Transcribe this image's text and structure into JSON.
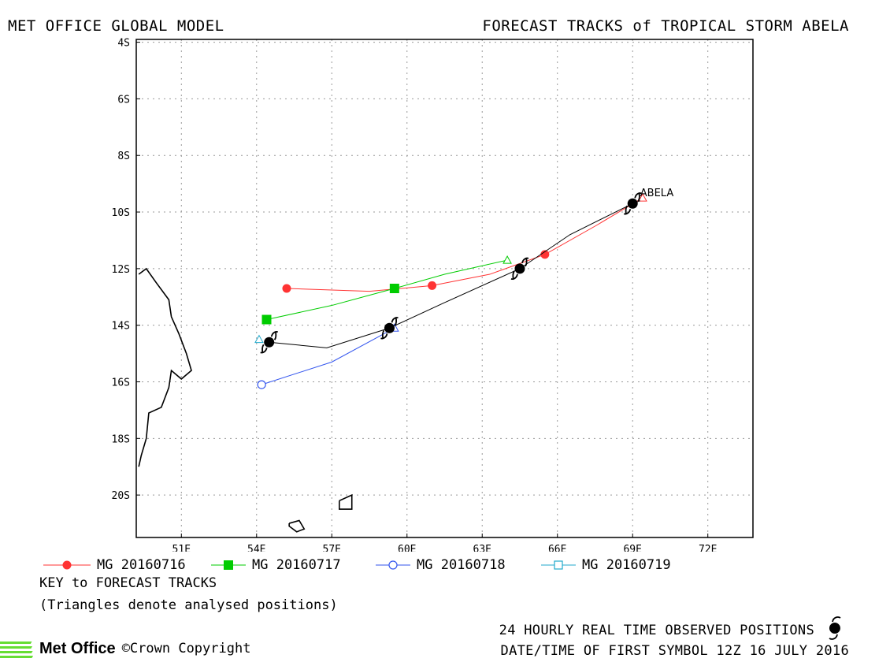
{
  "header": {
    "left": "MET OFFICE GLOBAL MODEL",
    "right": "FORECAST TRACKS of TROPICAL STORM ABELA"
  },
  "storm_label": "ABELA",
  "key": {
    "title": "KEY to FORECAST TRACKS",
    "note": "(Triangles denote analysed positions)"
  },
  "footer": {
    "observed": "24 HOURLY REAL TIME OBSERVED POSITIONS",
    "first_symbol": "DATE/TIME OF FIRST SYMBOL 12Z 16 JULY 2016",
    "logo": "Met Office",
    "copyright": "©Crown Copyright"
  },
  "colors": {
    "mg20160716": "#ff3333",
    "mg20160717": "#00cc00",
    "mg20160718": "#3355ee",
    "mg20160719": "#22aacc",
    "observed": "#000000",
    "grid": "#999999",
    "logo": "#66dd33"
  },
  "chart_data": {
    "type": "line",
    "title": "FORECAST TRACKS of TROPICAL STORM ABELA",
    "x_ticks": [
      "51E",
      "54E",
      "57E",
      "60E",
      "63E",
      "66E",
      "69E",
      "72E"
    ],
    "y_ticks": [
      "4S",
      "6S",
      "8S",
      "10S",
      "12S",
      "14S",
      "16S",
      "18S",
      "20S"
    ],
    "xlim": [
      49.2,
      73.8
    ],
    "ylim": [
      -21.5,
      -3.9
    ],
    "grid": true,
    "series": [
      {
        "name": "MG 20160716",
        "color": "#ff3333",
        "marker": "filled-circle",
        "points": [
          [
            69.4,
            -9.5
          ],
          [
            67.5,
            -10.5
          ],
          [
            65.5,
            -11.5
          ],
          [
            63.3,
            -12.2
          ],
          [
            61.0,
            -12.6
          ],
          [
            58.5,
            -12.8
          ],
          [
            55.2,
            -12.7
          ]
        ],
        "marker_points": [
          [
            65.5,
            -11.5
          ],
          [
            61.0,
            -12.6
          ],
          [
            55.2,
            -12.7
          ]
        ],
        "analysed": [
          69.4,
          -9.5
        ]
      },
      {
        "name": "MG 20160717",
        "color": "#00cc00",
        "marker": "filled-square",
        "points": [
          [
            64.0,
            -11.7
          ],
          [
            61.5,
            -12.2
          ],
          [
            59.5,
            -12.7
          ],
          [
            57.0,
            -13.3
          ],
          [
            54.4,
            -13.8
          ]
        ],
        "marker_points": [
          [
            59.5,
            -12.7
          ],
          [
            54.4,
            -13.8
          ]
        ],
        "analysed": [
          64.0,
          -11.7
        ]
      },
      {
        "name": "MG 20160718",
        "color": "#3355ee",
        "marker": "open-circle",
        "points": [
          [
            59.5,
            -14.1
          ],
          [
            57.0,
            -15.3
          ],
          [
            54.2,
            -16.1
          ]
        ],
        "marker_points": [
          [
            54.2,
            -16.1
          ]
        ],
        "analysed": [
          59.5,
          -14.1
        ]
      },
      {
        "name": "MG 20160719",
        "color": "#22aacc",
        "marker": "open-square",
        "points": [],
        "marker_points": [],
        "analysed": [
          54.1,
          -14.5
        ]
      },
      {
        "name": "observed",
        "color": "#000000",
        "marker": "storm-symbol",
        "points": [
          [
            69.3,
            -9.6
          ],
          [
            69.0,
            -9.7
          ],
          [
            66.5,
            -10.8
          ],
          [
            64.5,
            -12.0
          ],
          [
            61.5,
            -13.2
          ],
          [
            59.3,
            -14.1
          ],
          [
            56.8,
            -14.8
          ],
          [
            54.5,
            -14.6
          ]
        ],
        "marker_points": [
          [
            69.0,
            -9.7
          ],
          [
            64.5,
            -12.0
          ],
          [
            59.3,
            -14.1
          ],
          [
            54.5,
            -14.6
          ]
        ]
      }
    ],
    "coastlines": [
      [
        [
          49.3,
          -12.2
        ],
        [
          49.6,
          -12.0
        ],
        [
          50.0,
          -12.5
        ],
        [
          50.5,
          -13.1
        ],
        [
          50.6,
          -13.7
        ],
        [
          50.9,
          -14.3
        ],
        [
          51.2,
          -15.0
        ],
        [
          51.4,
          -15.6
        ],
        [
          51.0,
          -15.9
        ],
        [
          50.6,
          -15.6
        ],
        [
          50.5,
          -16.2
        ],
        [
          50.2,
          -16.9
        ],
        [
          49.7,
          -17.1
        ],
        [
          49.6,
          -18.0
        ],
        [
          49.4,
          -18.6
        ],
        [
          49.3,
          -19.0
        ]
      ],
      [
        [
          57.3,
          -20.2
        ],
        [
          57.8,
          -20.0
        ],
        [
          57.8,
          -20.5
        ],
        [
          57.3,
          -20.5
        ],
        [
          57.3,
          -20.2
        ]
      ],
      [
        [
          55.3,
          -21.0
        ],
        [
          55.7,
          -20.9
        ],
        [
          55.9,
          -21.2
        ],
        [
          55.6,
          -21.3
        ],
        [
          55.3,
          -21.1
        ],
        [
          55.3,
          -21.0
        ]
      ]
    ]
  }
}
